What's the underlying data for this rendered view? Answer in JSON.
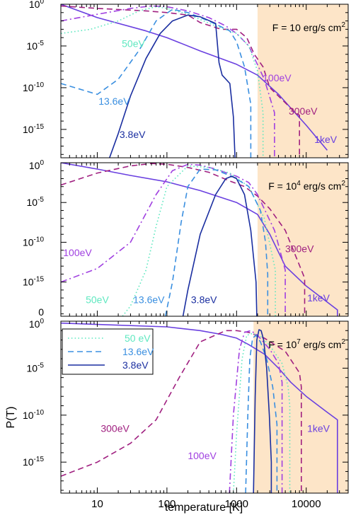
{
  "chart_data": {
    "type": "line",
    "xscale": "log",
    "yscale": "log",
    "xlim": [
      3,
      40000
    ],
    "xticks": [
      10,
      100,
      1000,
      10000
    ],
    "xtick_labels": [
      "10",
      "100",
      "1000",
      "10000"
    ],
    "xlabel": "temperature [K]",
    "ylabel": "P(T)",
    "legend": {
      "position": "top-left of bottom panel",
      "entries": [
        {
          "label": "50 eV",
          "color": "#5fe8c0",
          "dash": "dotted"
        },
        {
          "label": "13.6eV",
          "color": "#3a8fe0",
          "dash": "dashed"
        },
        {
          "label": "3.8eV",
          "color": "#1a2ea0",
          "dash": "solid"
        }
      ]
    },
    "colors": {
      "shade": "#fde5c8",
      "ev38": "#1a2ea0",
      "ev136": "#3a8fe0",
      "ev50": "#5fe8c0",
      "ev100": "#a040e0",
      "ev300": "#a02080",
      "kev1": "#6a40e0"
    },
    "panels": [
      {
        "flux": "F = 10 erg/s cm",
        "flux_sup": "2",
        "flux_exp": "",
        "ylim_log": [
          -18.4,
          0
        ],
        "yticks": [
          {
            "base": "10",
            "exp": "0",
            "log": 0
          },
          {
            "base": "10",
            "exp": "-5",
            "log": -5
          },
          {
            "base": "10",
            "exp": "-10",
            "log": -10
          },
          {
            "base": "10",
            "exp": "-15",
            "log": -15
          }
        ],
        "shade_from": 2000,
        "labels": [
          {
            "text": "50eV",
            "color": "#5fe8c0",
            "x": 33,
            "ylog": -4.7
          },
          {
            "text": "13.6eV",
            "color": "#3a8fe0",
            "x": 17.5,
            "ylog": -11.6
          },
          {
            "text": "3.8eV",
            "color": "#1a2ea0",
            "x": 32,
            "ylog": -15.6
          },
          {
            "text": "100eV",
            "color": "#a040e0",
            "x": 3800,
            "ylog": -8.8
          },
          {
            "text": "300eV",
            "color": "#a02080",
            "x": 9000,
            "ylog": -12.8
          },
          {
            "text": "1keV",
            "color": "#6a40e0",
            "x": 19000,
            "ylog": -16.2
          }
        ],
        "series": [
          {
            "name": "1keV",
            "color": "#6a40e0",
            "dash": "solid",
            "x": [
              3,
              10,
              50,
              100,
              300,
              1000,
              2000,
              4000,
              10000,
              20000
            ],
            "y": [
              0,
              -1.6,
              -3.2,
              -4.0,
              -5.6,
              -7.2,
              -8.5,
              -10.8,
              -14.5,
              -17.5
            ]
          },
          {
            "name": "300eV",
            "color": "#a02080",
            "dash": "dashed",
            "x": [
              3,
              10,
              50,
              100,
              200,
              300,
              600,
              1000,
              1400,
              1800,
              2400,
              3000,
              7000,
              8000,
              8000
            ],
            "y": [
              -0.2,
              -0.5,
              -0.8,
              -1.0,
              -1.3,
              -2.2,
              -3.0,
              -3.0,
              -4.0,
              -6.0,
              -7.5,
              -10.0,
              -13.0,
              -13.3,
              -18.4
            ]
          },
          {
            "name": "100eV",
            "color": "#a040e0",
            "dash": "dashdot",
            "x": [
              3,
              10,
              30,
              60,
              100,
              200,
              400,
              700,
              1000,
              1500,
              2500,
              3500,
              3500
            ],
            "y": [
              -2.0,
              -1.2,
              -0.5,
              -0.2,
              -0.3,
              -0.8,
              -1.6,
              -2.6,
              -3.5,
              -5.0,
              -9.0,
              -13.0,
              -18.4
            ]
          },
          {
            "name": "50eV",
            "color": "#5fe8c0",
            "dash": "dotted",
            "x": [
              3,
              8,
              20,
              40,
              70,
              100,
              200,
              500,
              1000,
              1500,
              2000,
              2400,
              2400
            ],
            "y": [
              -3.5,
              -3.0,
              -2.0,
              -0.8,
              -0.3,
              -0.5,
              -1.2,
              -2.6,
              -3.5,
              -5.0,
              -8.0,
              -13.0,
              -18.4
            ]
          },
          {
            "name": "13.6eV",
            "color": "#3a8fe0",
            "dash": "dashed",
            "x": [
              3,
              10,
              20,
              40,
              70,
              120,
              200,
              400,
              800,
              1000,
              1300,
              1600,
              1600
            ],
            "y": [
              -9.5,
              -10.8,
              -9.0,
              -5.5,
              -2.0,
              -0.6,
              -1.0,
              -2.0,
              -3.2,
              -4.5,
              -7.5,
              -12.0,
              -18.4
            ]
          },
          {
            "name": "3.8eV",
            "color": "#1a2ea0",
            "dash": "solid",
            "x": [
              15,
              20,
              30,
              50,
              80,
              120,
              200,
              300,
              500,
              560,
              620,
              800,
              900,
              950
            ],
            "y": [
              -18.4,
              -15.5,
              -11.0,
              -6.5,
              -3.5,
              -2.0,
              -1.3,
              -1.5,
              -2.3,
              -7.0,
              -8.5,
              -9.5,
              -13.5,
              -18.4
            ]
          }
        ]
      },
      {
        "flux": "F = 10",
        "flux_sup": "2",
        "flux_exp": "4",
        "ylim_log": [
          -19.3,
          0
        ],
        "yticks": [
          {
            "base": "10",
            "exp": "0",
            "log": 0
          },
          {
            "base": "10",
            "exp": "-5",
            "log": -5
          },
          {
            "base": "10",
            "exp": "-10",
            "log": -10
          },
          {
            "base": "10",
            "exp": "-15",
            "log": -15
          },
          {
            "base": "0",
            "exp": "",
            "log": -19.3
          }
        ],
        "shade_from": 2000,
        "labels": [
          {
            "text": "100eV",
            "color": "#a040e0",
            "x": 5.2,
            "ylog": -11.3
          },
          {
            "text": "50eV",
            "color": "#5fe8c0",
            "x": 10,
            "ylog": -17.2
          },
          {
            "text": "13.6eV",
            "color": "#3a8fe0",
            "x": 55,
            "ylog": -17.2
          },
          {
            "text": "3.8eV",
            "color": "#1a2ea0",
            "x": 340,
            "ylog": -17.2
          },
          {
            "text": "300eV",
            "color": "#a02080",
            "x": 8000,
            "ylog": -10.8
          },
          {
            "text": "1keV",
            "color": "#6a40e0",
            "x": 15000,
            "ylog": -17.0
          }
        ],
        "series": [
          {
            "name": "1keV",
            "color": "#6a40e0",
            "dash": "solid",
            "x": [
              3,
              10,
              30,
              100,
              300,
              1000,
              2000,
              3000,
              5000,
              10000,
              28000,
              28000
            ],
            "y": [
              0,
              -0.8,
              -1.6,
              -2.4,
              -3.5,
              -5.0,
              -6.5,
              -9.0,
              -13.0,
              -15.5,
              -18.5,
              -19.3
            ]
          },
          {
            "name": "300eV",
            "color": "#a02080",
            "dash": "dashed",
            "x": [
              3,
              10,
              30,
              60,
              100,
              200,
              400,
              800,
              1300,
              2000,
              3000,
              5000,
              9000,
              9500,
              9500
            ],
            "y": [
              -2.8,
              -1.3,
              -0.4,
              -0.1,
              -0.2,
              -0.6,
              -1.2,
              -2.3,
              -3.0,
              -4.2,
              -5.8,
              -8.5,
              -14.0,
              -14.5,
              -19.3
            ]
          },
          {
            "name": "100eV",
            "color": "#a040e0",
            "dash": "dashdot",
            "x": [
              3,
              10,
              30,
              70,
              120,
              200,
              300,
              500,
              1000,
              1500,
              2000,
              3500,
              5000,
              5000
            ],
            "y": [
              -15.0,
              -13.3,
              -10.0,
              -4.0,
              -1.0,
              -0.2,
              -0.3,
              -0.8,
              -1.7,
              -2.5,
              -4.0,
              -8.5,
              -13.5,
              -19.3
            ]
          },
          {
            "name": "50eV",
            "color": "#5fe8c0",
            "dash": "dotted",
            "x": [
              23,
              30,
              50,
              70,
              100,
              200,
              400,
              800,
              1500,
              2500,
              3600,
              3600
            ],
            "y": [
              -19.3,
              -18.0,
              -13.5,
              -8.0,
              -3.0,
              -0.4,
              -0.6,
              -1.3,
              -3.0,
              -7.0,
              -13.5,
              -19.3
            ]
          },
          {
            "name": "13.6eV",
            "color": "#3a8fe0",
            "dash": "dashed",
            "x": [
              95,
              120,
              160,
              200,
              300,
              500,
              900,
              1500,
              2200,
              2600,
              2800,
              2800
            ],
            "y": [
              -19.3,
              -15.0,
              -7.5,
              -3.0,
              -0.8,
              -0.9,
              -1.8,
              -3.0,
              -6.0,
              -10.0,
              -14.0,
              -19.3
            ]
          },
          {
            "name": "3.8eV",
            "color": "#1a2ea0",
            "dash": "solid",
            "x": [
              170,
              200,
              300,
              500,
              700,
              850,
              1000,
              1300,
              1600,
              1900,
              1950
            ],
            "y": [
              -19.3,
              -16.0,
              -9.0,
              -4.0,
              -2.0,
              -1.7,
              -2.0,
              -4.0,
              -8.5,
              -15.0,
              -19.3
            ]
          }
        ]
      },
      {
        "flux": "F = 10",
        "flux_sup": "2",
        "flux_exp": "7",
        "ylim_log": [
          -18.3,
          0
        ],
        "yticks": [
          {
            "base": "10",
            "exp": "0",
            "log": 0
          },
          {
            "base": "10",
            "exp": "-5",
            "log": -5
          },
          {
            "base": "10",
            "exp": "-10",
            "log": -10
          },
          {
            "base": "10",
            "exp": "-15",
            "log": -15
          }
        ],
        "shade_from": 1750,
        "labels": [
          {
            "text": "300eV",
            "color": "#a02080",
            "x": 18,
            "ylog": -11.4
          },
          {
            "text": "100eV",
            "color": "#a040e0",
            "x": 320,
            "ylog": -14.3
          },
          {
            "text": "1keV",
            "color": "#6a40e0",
            "x": 15000,
            "ylog": -11.4
          }
        ],
        "series": [
          {
            "name": "1keV",
            "color": "#6a40e0",
            "dash": "solid",
            "x": [
              3,
              100,
              300,
              600,
              1000,
              1500,
              2500,
              4000,
              6000,
              10000,
              20000,
              28000,
              28000
            ],
            "y": [
              -0.2,
              -0.6,
              -1.0,
              -1.4,
              -1.8,
              -2.5,
              -3.5,
              -5.0,
              -6.5,
              -8.0,
              -9.7,
              -10.5,
              -18.3
            ]
          },
          {
            "name": "300eV",
            "color": "#a02080",
            "dash": "dashed",
            "x": [
              3,
              10,
              30,
              70,
              150,
              300,
              700,
              1000,
              1500,
              2500,
              5000,
              8000,
              8500,
              8500
            ],
            "y": [
              -16.5,
              -15.0,
              -13.0,
              -10.5,
              -6.0,
              -2.2,
              -1.0,
              -1.0,
              -1.2,
              -1.8,
              -3.2,
              -5.5,
              -7.0,
              -18.3
            ]
          },
          {
            "name": "100eV",
            "color": "#a040e0",
            "dash": "dashdot",
            "x": [
              790,
              900,
              1100,
              1300,
              1600,
              2000,
              3000,
              4000,
              4500,
              4500
            ],
            "y": [
              -18.3,
              -10.0,
              -3.0,
              -1.2,
              -1.0,
              -1.5,
              -3.0,
              -4.5,
              -6.5,
              -18.3
            ]
          },
          {
            "name": "50eV",
            "color": "#5fe8c0",
            "dash": "dotted",
            "x": [
              900,
              1000,
              1200,
              1400,
              1700,
              2200,
              3000,
              4500,
              5500,
              5800,
              5800
            ],
            "y": [
              -18.3,
              -12.0,
              -4.0,
              -1.5,
              -1.3,
              -1.6,
              -2.6,
              -4.5,
              -7.0,
              -9.0,
              -18.3
            ]
          },
          {
            "name": "13.6eV",
            "color": "#3a8fe0",
            "dash": "dashed",
            "x": [
              1350,
              1450,
              1550,
              1700,
              1900,
              2200,
              2700,
              3300,
              3800,
              3800
            ],
            "y": [
              -18.3,
              -10.0,
              -4.0,
              -1.8,
              -1.5,
              -2.2,
              -4.0,
              -7.0,
              -11.0,
              -18.3
            ]
          },
          {
            "name": "3.8eV",
            "color": "#1a2ea0",
            "dash": "solid",
            "x": [
              1750,
              1850,
              1950,
              2100,
              2250,
              2450,
              2700,
              2950,
              3150,
              3150
            ],
            "y": [
              -18.3,
              -8.0,
              -2.0,
              -0.9,
              -1.0,
              -2.0,
              -5.0,
              -10.0,
              -15.0,
              -18.3
            ]
          }
        ]
      }
    ]
  }
}
